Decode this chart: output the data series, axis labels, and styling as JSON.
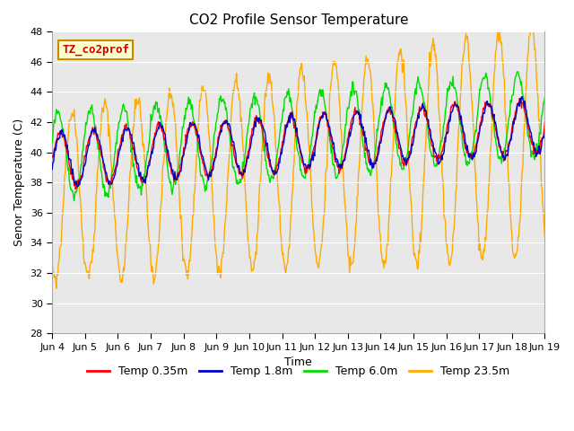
{
  "title": "CO2 Profile Sensor Temperature",
  "ylabel": "Senor Temperature (C)",
  "xlabel": "Time",
  "ylim": [
    28,
    48
  ],
  "yticks": [
    28,
    30,
    32,
    34,
    36,
    38,
    40,
    42,
    44,
    46,
    48
  ],
  "xtick_labels": [
    "Jun 4",
    "Jun 5",
    "Jun 6",
    "Jun 7",
    "Jun 8",
    "Jun 9",
    "Jun 10",
    "Jun 11",
    "Jun 12",
    "Jun 13",
    "Jun 14",
    "Jun 15",
    "Jun 16",
    "Jun 17",
    "Jun 18",
    "Jun 19"
  ],
  "annotation_text": "TZ_co2prof",
  "annotation_color": "#cc0000",
  "annotation_bg": "#ffffcc",
  "annotation_border": "#cc8800",
  "colors": {
    "temp035": "#ff0000",
    "temp18": "#0000cc",
    "temp60": "#00dd00",
    "temp235": "#ffaa00"
  },
  "legend_labels": [
    "Temp 0.35m",
    "Temp 1.8m",
    "Temp 6.0m",
    "Temp 23.5m"
  ],
  "fig_bg": "#ffffff",
  "plot_bg": "#e8e8e8",
  "grid_color": "#ffffff",
  "title_fontsize": 11,
  "label_fontsize": 9,
  "tick_fontsize": 8
}
